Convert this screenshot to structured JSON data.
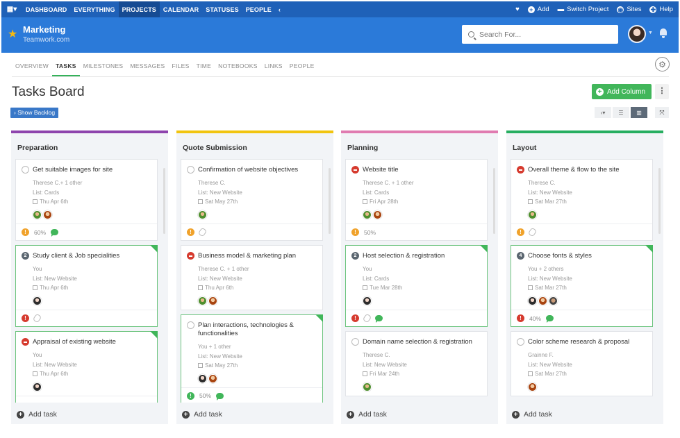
{
  "topnav": {
    "items": [
      "DASHBOARD",
      "EVERYTHING",
      "PROJECTS",
      "CALENDAR",
      "STATUSES",
      "PEOPLE"
    ],
    "active": "PROJECTS",
    "add_label": "Add",
    "switch_label": "Switch Project",
    "sites_label": "Sites",
    "help_label": "Help"
  },
  "project": {
    "name": "Marketing",
    "company": "Teamwork.com"
  },
  "search": {
    "placeholder": "Search For..."
  },
  "subtabs": [
    "OVERVIEW",
    "TASKS",
    "MILESTONES",
    "MESSAGES",
    "FILES",
    "TIME",
    "NOTEBOOKS",
    "LINKS",
    "PEOPLE"
  ],
  "subtabs_active": "TASKS",
  "page_title": "Tasks Board",
  "add_column_label": "Add Column",
  "show_backlog_label": "› Show Backlog",
  "add_task_label": "Add task",
  "colors": {
    "accent": "#1f61b8",
    "header": "#2b7ad9",
    "green": "#41b65a",
    "red": "#d63b2f",
    "orange": "#f0a22b"
  },
  "columns": [
    {
      "name": "Preparation",
      "color": "#8e44ad",
      "tasks": [
        {
          "title": "Get suitable images for site",
          "assignees": "Therese C.+ 1 other",
          "list": "List: Cards",
          "date": "Thu Apr 6th",
          "status": "open",
          "avatars": [
            "a1",
            "a2"
          ],
          "priority": "orange",
          "progress": "60%",
          "comment": true,
          "clip": false,
          "green": false
        },
        {
          "title": "Study client & Job specialities",
          "assignees": "You",
          "list": "List: New Website",
          "date": "Thu Apr 6th",
          "status": "num",
          "num": "2",
          "avatars": [
            "a3"
          ],
          "priority": "red",
          "progress": "",
          "comment": false,
          "clip": true,
          "green": true
        },
        {
          "title": "Appraisal of existing website",
          "assignees": "You",
          "list": "List: New Website",
          "date": "Thu Apr 6th",
          "status": "red",
          "avatars": [
            "a3"
          ],
          "priority": "",
          "progress": "",
          "comment": false,
          "clip": false,
          "green": true
        }
      ]
    },
    {
      "name": "Quote Submission",
      "color": "#f1c40f",
      "tasks": [
        {
          "title": "Confirmation of website objectives",
          "assignees": "Therese C.",
          "list": "List: New Website",
          "date": "Sat May 27th",
          "status": "open",
          "avatars": [
            "a1"
          ],
          "priority": "orange",
          "progress": "",
          "comment": false,
          "clip": true,
          "green": false
        },
        {
          "title": "Business model & marketing plan",
          "assignees": "Therese C. + 1 other",
          "list": "List: New Website",
          "date": "Thu Apr 6th",
          "status": "red",
          "avatars": [
            "a1",
            "a2"
          ],
          "priority": "",
          "progress": "",
          "comment": false,
          "clip": false,
          "green": false,
          "nofoot": true
        },
        {
          "title": "Plan interactions, technologies & functionalities",
          "assignees": "You + 1 other",
          "list": "List: New Website",
          "date": "Sat May 27th",
          "status": "open",
          "avatars": [
            "a3",
            "a2"
          ],
          "priority": "green",
          "progress": "50%",
          "comment": true,
          "clip": false,
          "green": true
        }
      ]
    },
    {
      "name": "Planning",
      "color": "#e07bb0",
      "tasks": [
        {
          "title": "Website title",
          "assignees": "Therese C. + 1 other",
          "list": "List: Cards",
          "date": "Fri Apr 28th",
          "status": "red",
          "avatars": [
            "a1",
            "a2"
          ],
          "priority": "orange",
          "progress": "50%",
          "comment": false,
          "clip": false,
          "green": false
        },
        {
          "title": "Host selection & registration",
          "assignees": "You",
          "list": "List: Cards",
          "date": "Tue Mar 28th",
          "status": "num",
          "num": "2",
          "avatars": [
            "a3"
          ],
          "priority": "red",
          "progress": "",
          "comment": true,
          "clip": true,
          "green": true
        },
        {
          "title": "Domain name selection & registration",
          "assignees": "Therese C.",
          "list": "List: New Website",
          "date": "Fri Mar 24th",
          "status": "open",
          "avatars": [
            "a1"
          ],
          "priority": "",
          "progress": "",
          "comment": false,
          "clip": false,
          "green": false,
          "nofoot": true
        }
      ]
    },
    {
      "name": "Layout",
      "color": "#27ae60",
      "tasks": [
        {
          "title": "Overall theme & flow to the site",
          "assignees": "Therese C.",
          "list": "List: New Website",
          "date": "Sat Mar 27th",
          "status": "red",
          "avatars": [
            "a1"
          ],
          "priority": "orange",
          "progress": "",
          "comment": false,
          "clip": true,
          "green": false
        },
        {
          "title": "Choose fonts & styles",
          "assignees": "You + 2 others",
          "list": "List: New Website",
          "date": "Sat Mar 27th",
          "status": "num",
          "num": "4",
          "avatars": [
            "a3",
            "a2",
            "a4"
          ],
          "priority": "red",
          "progress": "40%",
          "comment": true,
          "clip": false,
          "green": true
        },
        {
          "title": "Color scheme research & proposal",
          "assignees": "Grainne F.",
          "list": "List: New Website",
          "date": "Sat Mar 27th",
          "status": "open",
          "avatars": [
            "a2"
          ],
          "priority": "",
          "progress": "",
          "comment": false,
          "clip": false,
          "green": false,
          "nofoot": true
        }
      ]
    }
  ]
}
